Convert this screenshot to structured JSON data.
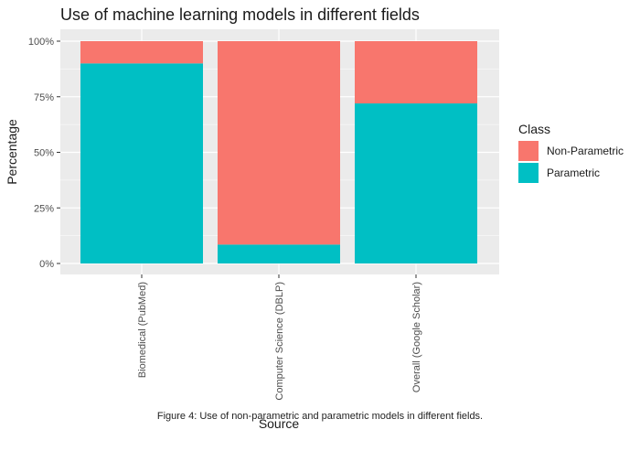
{
  "chart_data": {
    "type": "bar",
    "stacked": true,
    "title": "Use of machine learning models in different fields",
    "xlabel": "Source",
    "ylabel": "Percentage",
    "categories": [
      "Biomedical (PubMed)",
      "Computer Science (DBLP)",
      "Overall (Google Scholar)"
    ],
    "series": [
      {
        "name": "Parametric",
        "color": "#00BFC4",
        "values": [
          0.9,
          0.085,
          0.72
        ]
      },
      {
        "name": "Non-Parametric",
        "color": "#F8766D",
        "values": [
          0.1,
          0.915,
          0.28
        ]
      }
    ],
    "ylim": [
      0,
      1
    ],
    "yticks": [
      0,
      0.25,
      0.5,
      0.75,
      1
    ],
    "ytick_labels": [
      "0%",
      "25%",
      "50%",
      "75%",
      "100%"
    ],
    "legend": {
      "title": "Class",
      "position": "right",
      "items": [
        {
          "label": "Non-Parametric",
          "color": "#F8766D"
        },
        {
          "label": "Parametric",
          "color": "#00BFC4"
        }
      ]
    },
    "grid": true,
    "panel_background": "#EBEBEB"
  },
  "caption": "Figure 4: Use of non-parametric and parametric models in different fields."
}
